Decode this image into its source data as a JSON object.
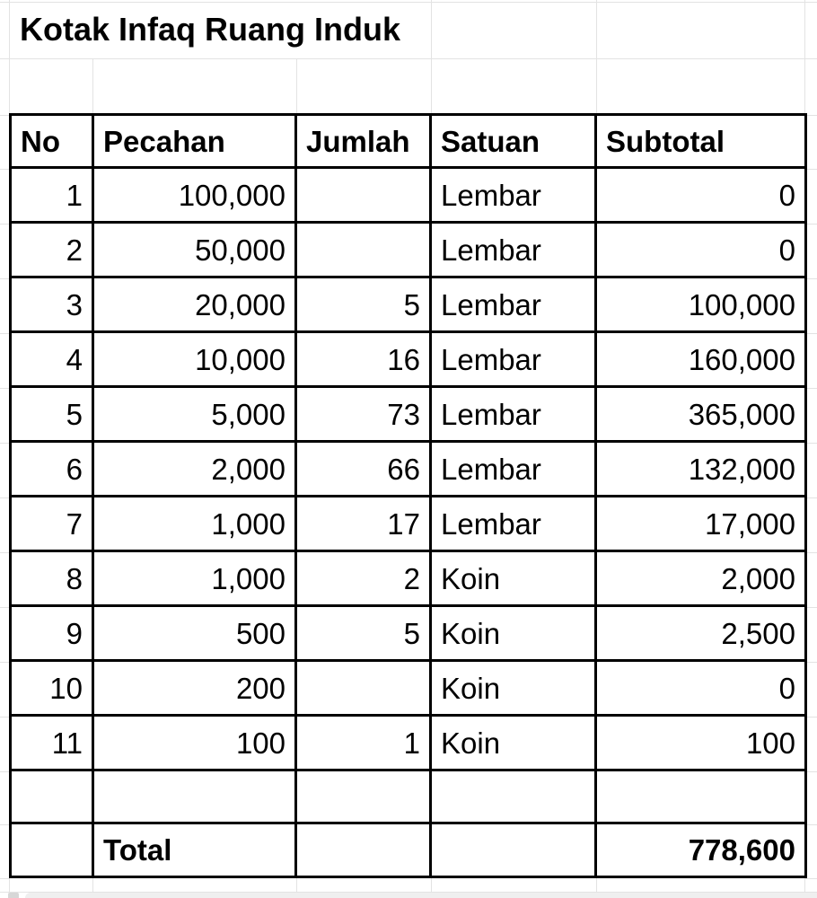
{
  "sheet": {
    "title": "Kotak Infaq Ruang Induk",
    "table": {
      "headers": {
        "no": "No",
        "pecahan": "Pecahan",
        "jumlah": "Jumlah",
        "satuan": "Satuan",
        "subtotal": "Subtotal"
      },
      "rows": [
        {
          "no": "1",
          "pecahan": "100,000",
          "jumlah": "",
          "satuan": "Lembar",
          "subtotal": "0"
        },
        {
          "no": "2",
          "pecahan": "50,000",
          "jumlah": "",
          "satuan": "Lembar",
          "subtotal": "0"
        },
        {
          "no": "3",
          "pecahan": "20,000",
          "jumlah": "5",
          "satuan": "Lembar",
          "subtotal": "100,000"
        },
        {
          "no": "4",
          "pecahan": "10,000",
          "jumlah": "16",
          "satuan": "Lembar",
          "subtotal": "160,000"
        },
        {
          "no": "5",
          "pecahan": "5,000",
          "jumlah": "73",
          "satuan": "Lembar",
          "subtotal": "365,000"
        },
        {
          "no": "6",
          "pecahan": "2,000",
          "jumlah": "66",
          "satuan": "Lembar",
          "subtotal": "132,000"
        },
        {
          "no": "7",
          "pecahan": "1,000",
          "jumlah": "17",
          "satuan": "Lembar",
          "subtotal": "17,000"
        },
        {
          "no": "8",
          "pecahan": "1,000",
          "jumlah": "2",
          "satuan": "Koin",
          "subtotal": "2,000"
        },
        {
          "no": "9",
          "pecahan": "500",
          "jumlah": "5",
          "satuan": "Koin",
          "subtotal": "2,500"
        },
        {
          "no": "10",
          "pecahan": "200",
          "jumlah": "",
          "satuan": "Koin",
          "subtotal": "0"
        },
        {
          "no": "11",
          "pecahan": "100",
          "jumlah": "1",
          "satuan": "Koin",
          "subtotal": "100"
        },
        {
          "no": "",
          "pecahan": "",
          "jumlah": "",
          "satuan": "",
          "subtotal": ""
        }
      ],
      "total": {
        "no": "",
        "label": "Total",
        "jumlah": "",
        "satuan": "",
        "value": "778,600"
      }
    },
    "colors": {
      "gridline": "#e3e3e3",
      "table_border": "#000000",
      "background": "#ffffff",
      "footer_bar": "#efefef",
      "footer_square": "#d7d7d7",
      "text": "#000000"
    }
  }
}
